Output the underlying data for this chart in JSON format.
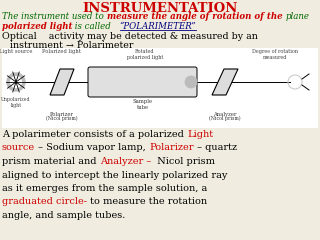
{
  "bg_color": "#f0ede0",
  "title": "INSTRUMENTATION",
  "title_color": "#cc0000",
  "title_fontsize": 9.5,
  "line1_seg1": "The instrument used to ",
  "line1_seg2": "measure the angle of rotation of the ",
  "line1_seg3": "plane",
  "line2_seg1": "polarized light",
  "line2_seg2": " is called   ",
  "line2_seg3": "“POLARIMETER”",
  "green_color": "#006600",
  "red_color": "#cc0000",
  "blue_color": "#000080",
  "black_color": "#000000",
  "opt_line1": "Optical    activity may be detected & measured by an",
  "opt_line2": "instrument → Polarimeter",
  "fs_header": 6.2,
  "fs_optical": 6.8,
  "fs_para": 7.0,
  "fs_diagram": 3.8,
  "para_lines": [
    [
      [
        "A polarimeter consists of a polarized ",
        "#000000"
      ],
      [
        "Light",
        "#cc0000"
      ]
    ],
    [
      [
        "source",
        "#cc0000"
      ],
      [
        " – Sodium vapor lamp, ",
        "#000000"
      ],
      [
        "Polarizer",
        "#cc0000"
      ],
      [
        " – quartz",
        "#000000"
      ]
    ],
    [
      [
        "prism material and ",
        "#000000"
      ],
      [
        "Analyzer –",
        "#cc0000"
      ],
      [
        "  Nicol prism",
        "#000000"
      ]
    ],
    [
      [
        "aligned to intercept the linearly polarized ray",
        "#000000"
      ]
    ],
    [
      [
        "as it emerges from the sample solution, a",
        "#000000"
      ]
    ],
    [
      [
        "graduated circle-",
        "#cc0000"
      ],
      [
        " to measure the rotation",
        "#000000"
      ]
    ],
    [
      [
        "angle, and sample tubes.",
        "#000000"
      ]
    ]
  ]
}
